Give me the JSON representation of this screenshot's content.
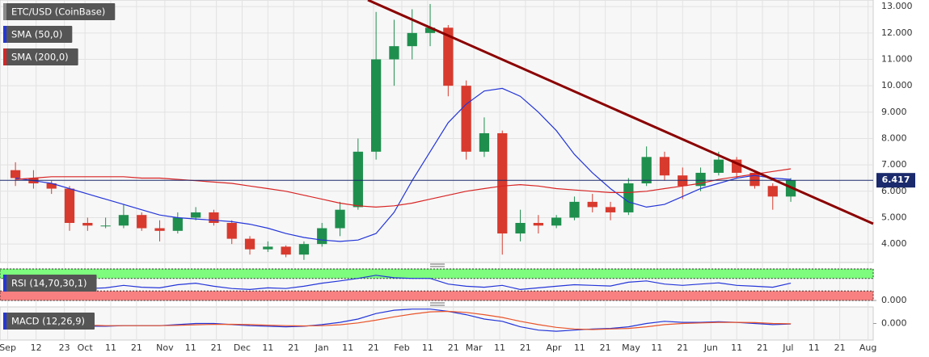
{
  "chart_data": [
    {
      "type": "candlestick",
      "x": [
        3,
        10,
        17,
        24,
        31,
        38,
        45,
        52,
        59,
        66,
        73,
        80,
        87,
        94,
        101,
        108,
        115,
        122,
        129,
        136,
        143,
        150,
        157,
        164,
        171,
        178,
        185,
        192,
        199,
        206,
        213,
        220,
        227,
        234,
        241,
        248,
        255,
        262,
        269,
        276,
        283,
        290,
        297,
        304
      ],
      "ohlc": {
        "name": "ETC/USD (CoinBase)",
        "color": "#8a8a8a",
        "up_color": "#1f8f4e",
        "down_color": "#d83a2e",
        "open": [
          6.8,
          6.5,
          6.3,
          6.1,
          4.8,
          4.7,
          4.7,
          5.1,
          4.6,
          4.5,
          5.0,
          5.2,
          4.8,
          4.2,
          3.8,
          3.9,
          3.6,
          4.0,
          4.6,
          5.4,
          7.5,
          11.0,
          11.5,
          12.0,
          12.2,
          10.0,
          7.5,
          8.2,
          4.4,
          4.8,
          4.7,
          5.0,
          5.6,
          5.4,
          5.2,
          6.3,
          7.3,
          6.6,
          6.2,
          6.7,
          7.2,
          6.7,
          6.2,
          5.8
        ],
        "high": [
          7.1,
          6.8,
          6.4,
          6.2,
          5.0,
          5.0,
          5.5,
          5.2,
          4.9,
          5.2,
          5.4,
          5.3,
          4.9,
          4.3,
          4.1,
          3.95,
          4.1,
          4.8,
          5.6,
          8.0,
          12.8,
          12.5,
          12.9,
          13.1,
          12.3,
          10.2,
          8.8,
          8.3,
          5.3,
          5.1,
          5.1,
          5.8,
          5.9,
          5.6,
          6.5,
          7.7,
          7.5,
          6.9,
          6.9,
          7.5,
          7.3,
          6.8,
          6.3,
          6.5
        ],
        "low": [
          6.2,
          6.1,
          5.9,
          4.5,
          4.5,
          4.6,
          4.6,
          4.5,
          4.1,
          4.4,
          4.9,
          4.7,
          4.0,
          3.6,
          3.7,
          3.5,
          3.4,
          3.9,
          4.3,
          5.3,
          7.2,
          10.0,
          11.0,
          11.5,
          9.6,
          7.2,
          7.3,
          3.6,
          4.1,
          4.4,
          4.6,
          4.9,
          5.2,
          4.9,
          5.1,
          6.2,
          6.4,
          5.7,
          6.0,
          6.6,
          6.5,
          6.1,
          5.3,
          5.6
        ],
        "close": [
          6.5,
          6.3,
          6.1,
          4.8,
          4.7,
          4.7,
          5.1,
          4.6,
          4.5,
          5.0,
          5.2,
          4.8,
          4.2,
          3.8,
          3.9,
          3.6,
          4.0,
          4.6,
          5.3,
          7.5,
          11.0,
          11.5,
          12.0,
          12.2,
          10.0,
          7.5,
          8.2,
          4.4,
          4.8,
          4.7,
          5.0,
          5.6,
          5.4,
          5.2,
          6.3,
          7.3,
          6.6,
          6.2,
          6.7,
          7.2,
          6.7,
          6.2,
          5.8,
          6.42
        ]
      },
      "series": [
        {
          "name": "SMA (50,0)",
          "color": "#2436d8",
          "values": [
            6.5,
            6.4,
            6.3,
            6.1,
            5.9,
            5.7,
            5.5,
            5.3,
            5.1,
            5.0,
            4.95,
            4.9,
            4.85,
            4.75,
            4.6,
            4.4,
            4.25,
            4.15,
            4.1,
            4.15,
            4.4,
            5.2,
            6.4,
            7.5,
            8.6,
            9.3,
            9.8,
            9.9,
            9.6,
            9.0,
            8.3,
            7.4,
            6.7,
            6.1,
            5.6,
            5.4,
            5.5,
            5.8,
            6.1,
            6.3,
            6.5,
            6.6,
            6.5,
            6.45
          ]
        },
        {
          "name": "SMA (200,0)",
          "color": "#d82424",
          "values": [
            6.45,
            6.5,
            6.55,
            6.55,
            6.55,
            6.55,
            6.55,
            6.5,
            6.5,
            6.45,
            6.4,
            6.35,
            6.3,
            6.2,
            6.1,
            6.0,
            5.85,
            5.7,
            5.55,
            5.45,
            5.4,
            5.45,
            5.55,
            5.7,
            5.85,
            6.0,
            6.1,
            6.2,
            6.25,
            6.2,
            6.1,
            6.05,
            6.0,
            5.95,
            5.95,
            6.0,
            6.1,
            6.2,
            6.3,
            6.45,
            6.55,
            6.65,
            6.75,
            6.85
          ]
        }
      ],
      "last_price": 6.417,
      "xlim": [
        -3,
        336
      ],
      "xticks": [
        {
          "value": 0,
          "label": "Sep"
        },
        {
          "value": 11,
          "label": "12"
        },
        {
          "value": 22,
          "label": "23"
        },
        {
          "value": 30,
          "label": "Oct"
        },
        {
          "value": 40,
          "label": "11"
        },
        {
          "value": 50,
          "label": "21"
        },
        {
          "value": 61,
          "label": "Nov"
        },
        {
          "value": 71,
          "label": "11"
        },
        {
          "value": 81,
          "label": "21"
        },
        {
          "value": 91,
          "label": "Dec"
        },
        {
          "value": 101,
          "label": "11"
        },
        {
          "value": 111,
          "label": "21"
        },
        {
          "value": 122,
          "label": "Jan"
        },
        {
          "value": 132,
          "label": "11"
        },
        {
          "value": 142,
          "label": "21"
        },
        {
          "value": 153,
          "label": "Feb"
        },
        {
          "value": 163,
          "label": "11"
        },
        {
          "value": 173,
          "label": "21"
        },
        {
          "value": 181,
          "label": "Mar"
        },
        {
          "value": 191,
          "label": "11"
        },
        {
          "value": 201,
          "label": "21"
        },
        {
          "value": 212,
          "label": "Apr"
        },
        {
          "value": 222,
          "label": "11"
        },
        {
          "value": 232,
          "label": "21"
        },
        {
          "value": 242,
          "label": "May"
        },
        {
          "value": 252,
          "label": "11"
        },
        {
          "value": 262,
          "label": "21"
        },
        {
          "value": 273,
          "label": "Jun"
        },
        {
          "value": 283,
          "label": "11"
        },
        {
          "value": 293,
          "label": "21"
        },
        {
          "value": 303,
          "label": "Jul"
        },
        {
          "value": 313,
          "label": "11"
        },
        {
          "value": 323,
          "label": "21"
        },
        {
          "value": 334,
          "label": "Aug"
        }
      ],
      "ylim": [
        3.3,
        13.25
      ],
      "yticks": [
        {
          "value": 4,
          "label": "4.000"
        },
        {
          "value": 5,
          "label": "5.000"
        },
        {
          "value": 6,
          "label": "6.000"
        },
        {
          "value": 7,
          "label": "7.000"
        },
        {
          "value": 8,
          "label": "8.000"
        },
        {
          "value": 9,
          "label": "9.000"
        },
        {
          "value": 10,
          "label": "10.000"
        },
        {
          "value": 11,
          "label": "11.000"
        },
        {
          "value": 12,
          "label": "12.000"
        },
        {
          "value": 13,
          "label": "13.000"
        }
      ],
      "grid": true
    },
    {
      "type": "line",
      "title": "RSI (14,70,30,1)",
      "overbought": 70,
      "oversold": 30,
      "ylim": [
        0,
        100
      ],
      "yticks": [
        {
          "value": 0,
          "label": "0.000"
        }
      ],
      "series": [
        {
          "color": "#2436d8",
          "values": [
            50,
            45,
            42,
            35,
            38,
            40,
            48,
            42,
            40,
            50,
            55,
            45,
            38,
            35,
            40,
            38,
            45,
            55,
            62,
            70,
            80,
            72,
            70,
            70,
            52,
            45,
            42,
            48,
            35,
            40,
            45,
            50,
            48,
            46,
            58,
            62,
            52,
            48,
            52,
            56,
            48,
            45,
            42,
            55
          ]
        }
      ]
    },
    {
      "type": "line",
      "title": "MACD (12,26,9)",
      "ylim": [
        -1.5,
        1.5
      ],
      "yticks": [
        {
          "value": 0,
          "label": "0.000"
        }
      ],
      "series": [
        {
          "color": "#2436d8",
          "values": [
            0.0,
            -0.05,
            -0.1,
            -0.2,
            -0.25,
            -0.25,
            -0.2,
            -0.2,
            -0.2,
            -0.1,
            0,
            0,
            -0.1,
            -0.2,
            -0.25,
            -0.3,
            -0.25,
            -0.1,
            0.1,
            0.4,
            0.9,
            1.2,
            1.3,
            1.3,
            1.1,
            0.8,
            0.4,
            0.2,
            -0.3,
            -0.6,
            -0.7,
            -0.6,
            -0.5,
            -0.45,
            -0.3,
            0,
            0.2,
            0.1,
            0.1,
            0.15,
            0.1,
            0,
            -0.1,
            -0.05
          ]
        },
        {
          "color": "#e8542a",
          "values": [
            0.05,
            0,
            -0.05,
            -0.1,
            -0.15,
            -0.2,
            -0.2,
            -0.2,
            -0.2,
            -0.17,
            -0.12,
            -0.08,
            -0.07,
            -0.1,
            -0.15,
            -0.2,
            -0.22,
            -0.2,
            -0.12,
            0.05,
            0.3,
            0.6,
            0.85,
            1.05,
            1.1,
            1.0,
            0.8,
            0.55,
            0.2,
            -0.1,
            -0.35,
            -0.5,
            -0.55,
            -0.5,
            -0.45,
            -0.3,
            -0.1,
            0.0,
            0.05,
            0.1,
            0.1,
            0.08,
            0.0,
            -0.03
          ]
        }
      ]
    }
  ]
}
